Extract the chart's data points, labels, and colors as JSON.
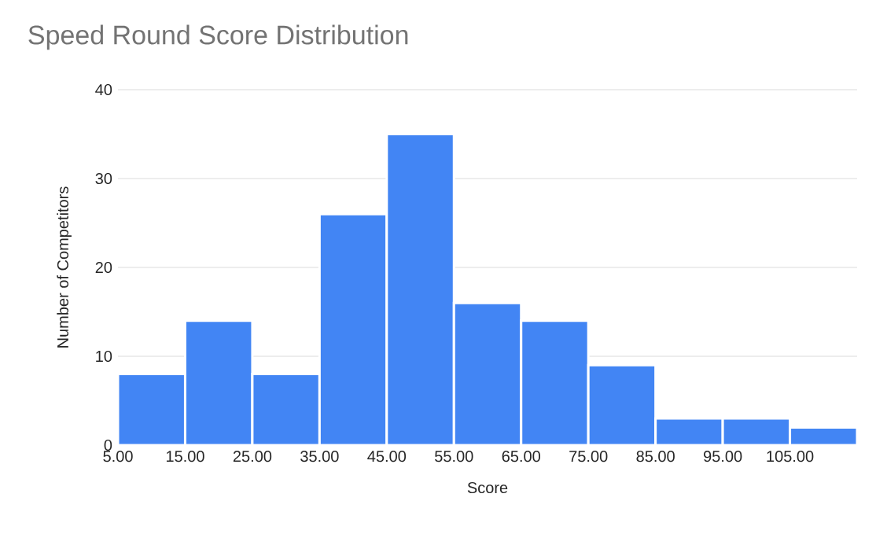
{
  "chart_data": {
    "type": "histogram",
    "title": "Speed Round Score Distribution",
    "xlabel": "Score",
    "ylabel": "Number of Competitors",
    "bins": [
      5,
      15,
      25,
      35,
      45,
      55,
      65,
      75,
      85,
      95,
      105,
      115
    ],
    "values": [
      8,
      14,
      8,
      26,
      35,
      16,
      14,
      9,
      3,
      3,
      2
    ],
    "color": "#4285f4",
    "xlim": [
      5,
      115
    ],
    "xticks": [
      {
        "value": 5,
        "label": "5.00"
      },
      {
        "value": 15,
        "label": "15.00"
      },
      {
        "value": 25,
        "label": "25.00"
      },
      {
        "value": 35,
        "label": "35.00"
      },
      {
        "value": 45,
        "label": "45.00"
      },
      {
        "value": 55,
        "label": "55.00"
      },
      {
        "value": 65,
        "label": "65.00"
      },
      {
        "value": 75,
        "label": "75.00"
      },
      {
        "value": 85,
        "label": "85.00"
      },
      {
        "value": 95,
        "label": "95.00"
      },
      {
        "value": 105,
        "label": "105.00"
      }
    ],
    "ylim": [
      0,
      40
    ],
    "yticks": [
      0,
      10,
      20,
      30,
      40
    ],
    "grid": "y"
  }
}
